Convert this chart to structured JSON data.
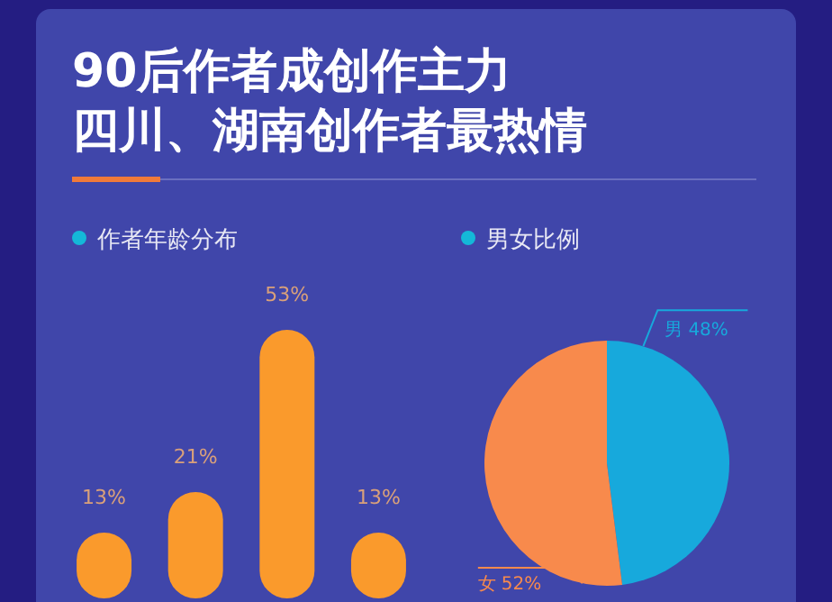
{
  "chart_data": [
    {
      "type": "other",
      "title": "90后作者成创作主力",
      "subtitle": "四川、湖南创作者最热情"
    },
    {
      "type": "bar",
      "title": "作者年龄分布",
      "categories": [
        null,
        null,
        null,
        null
      ],
      "values": [
        13,
        21,
        53,
        13
      ],
      "value_labels": [
        "13%",
        "21%",
        "53%",
        "13%"
      ],
      "color": "#fa9a2c"
    },
    {
      "type": "pie",
      "title": "男女比例",
      "categories": [
        "男",
        "女"
      ],
      "values": [
        48,
        52
      ],
      "value_labels": [
        "48%",
        "52%"
      ],
      "colors": [
        "#17a9dc",
        "#f88a4c"
      ]
    }
  ]
}
